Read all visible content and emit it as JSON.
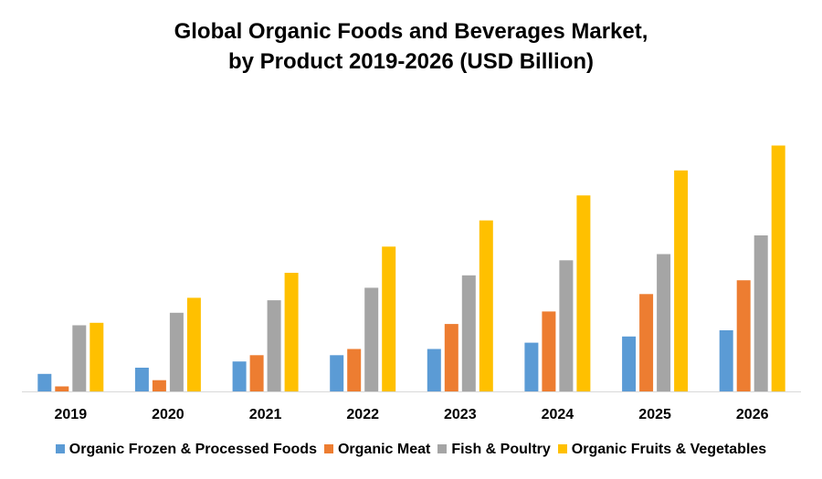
{
  "chart_data": {
    "type": "bar",
    "title": "Global Organic Foods and Beverages Market,",
    "subtitle": "by Product 2019-2026 (USD Billion)",
    "xlabel": "",
    "ylabel": "",
    "ylim": [
      0,
      100
    ],
    "grid": false,
    "legend_position": "bottom",
    "categories": [
      "2019",
      "2020",
      "2021",
      "2022",
      "2023",
      "2024",
      "2025",
      "2026"
    ],
    "series": [
      {
        "name": "Organic Frozen & Processed Foods",
        "color": "#5B9BD5",
        "values": [
          7.0,
          9.5,
          12.0,
          14.5,
          17.0,
          19.5,
          22.0,
          24.5
        ]
      },
      {
        "name": "Organic Meat",
        "color": "#ED7D31",
        "values": [
          2.0,
          4.5,
          14.5,
          17.0,
          27.0,
          32.0,
          39.0,
          44.5
        ]
      },
      {
        "name": "Fish & Poultry",
        "color": "#A5A5A5",
        "values": [
          26.5,
          31.5,
          36.5,
          41.5,
          46.5,
          52.5,
          55.0,
          62.5
        ]
      },
      {
        "name": "Organic Fruits & Vegetables",
        "color": "#FFC000",
        "values": [
          27.5,
          37.5,
          47.5,
          58.0,
          68.5,
          78.5,
          88.5,
          98.5
        ]
      }
    ]
  }
}
